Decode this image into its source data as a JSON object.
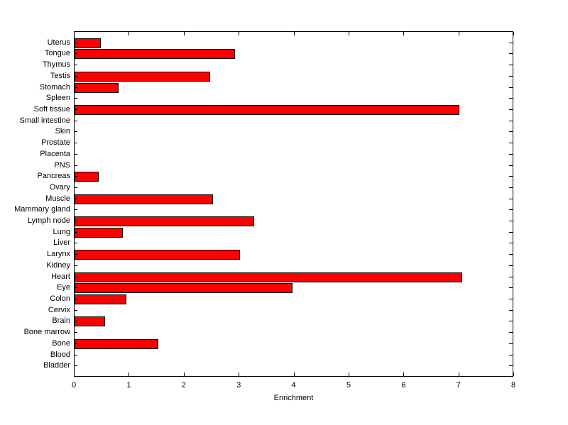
{
  "figure": {
    "background_color": "#ffffff",
    "xlabel": "Enrichment"
  },
  "chart_data": {
    "type": "bar",
    "orientation": "horizontal",
    "title": "",
    "xlabel": "Enrichment",
    "ylabel": "",
    "xlim": [
      0,
      8
    ],
    "x_ticks": [
      0,
      1,
      2,
      3,
      4,
      5,
      6,
      7,
      8
    ],
    "grid": false,
    "legend": null,
    "bar_color": "#ff0000",
    "bar_edge_color": "#000000",
    "categories": [
      "Uterus",
      "Tongue",
      "Thymus",
      "Testis",
      "Stomach",
      "Spleen",
      "Soft tissue",
      "Small intestine",
      "Skin",
      "Prostate",
      "Placenta",
      "PNS",
      "Pancreas",
      "Ovary",
      "Muscle",
      "Mammary gland",
      "Lymph node",
      "Lung",
      "Liver",
      "Larynx",
      "Kidney",
      "Heart",
      "Eye",
      "Colon",
      "Cervix",
      "Brain",
      "Bone marrow",
      "Bone",
      "Blood",
      "Bladder"
    ],
    "values": [
      0.45,
      2.9,
      0,
      2.45,
      0.78,
      0,
      7.0,
      0,
      0,
      0,
      0,
      0,
      0.42,
      0,
      2.5,
      0,
      3.25,
      0.85,
      0,
      3.0,
      0,
      7.05,
      3.95,
      0.92,
      0,
      0.53,
      0,
      1.5,
      0,
      0
    ]
  }
}
